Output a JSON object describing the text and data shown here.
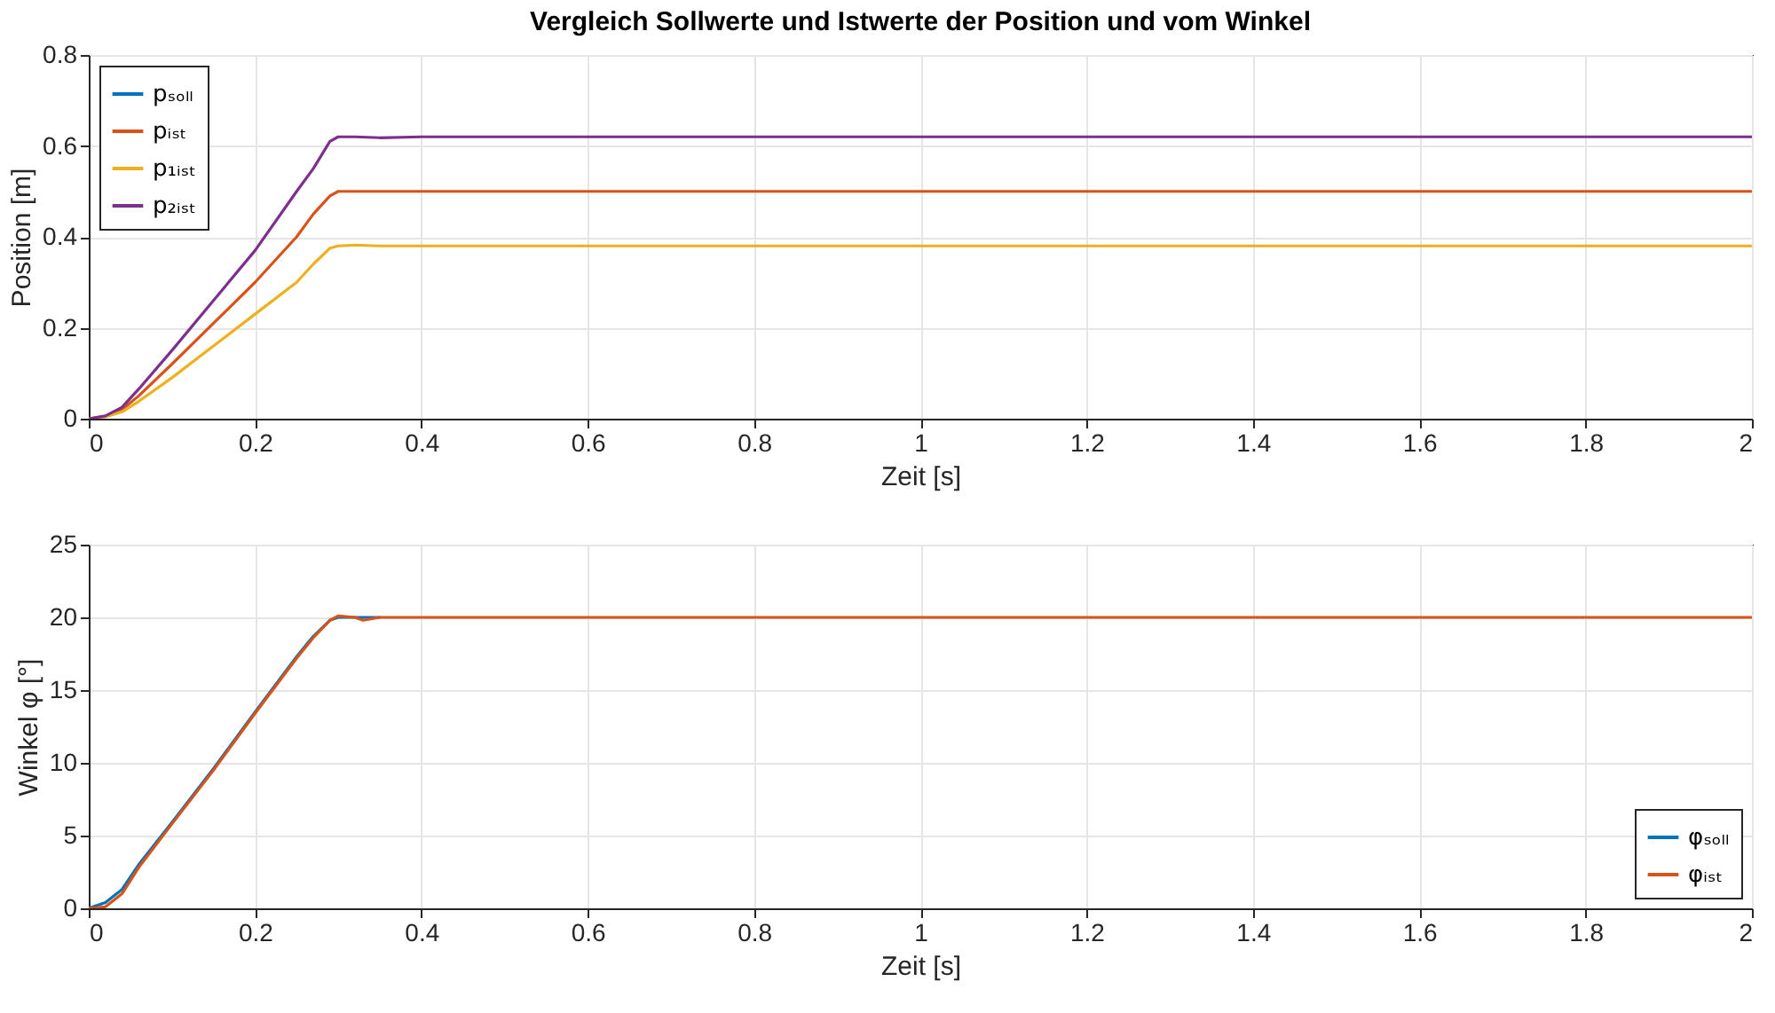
{
  "chart_data": [
    {
      "type": "line",
      "title": "Vergleich Sollwerte und Istwerte der Position und vom Winkel",
      "xlabel": "Zeit [s]",
      "ylabel": "Position [m]",
      "x": [
        0,
        0.02,
        0.04,
        0.06,
        0.1,
        0.15,
        0.2,
        0.25,
        0.27,
        0.29,
        0.3,
        0.32,
        0.35,
        0.4,
        1,
        2
      ],
      "xlim": [
        0,
        2
      ],
      "xticks": [
        0,
        0.2,
        0.4,
        0.6,
        0.8,
        1,
        1.2,
        1.4,
        1.6,
        1.8,
        2
      ],
      "ylim": [
        0,
        0.8
      ],
      "yticks": [
        0,
        0.2,
        0.4,
        0.6,
        0.8
      ],
      "grid": true,
      "legend": "top left",
      "line_style": "solid",
      "series": [
        {
          "name": "pₛₒₗₗ",
          "color": "#0072bd",
          "values": [
            null,
            null,
            null,
            null,
            null,
            null,
            null,
            null,
            null,
            null,
            null,
            null,
            null,
            null,
            null,
            null
          ]
        },
        {
          "name": "pᵢₛₜ",
          "color": "#d95319",
          "values": [
            0,
            0.005,
            0.02,
            0.05,
            0.12,
            0.21,
            0.3,
            0.4,
            0.45,
            0.49,
            0.5,
            0.5,
            0.5,
            0.5,
            0.5,
            0.5
          ]
        },
        {
          "name": "p₁ᵢₛₜ",
          "color": "#edb120",
          "values": [
            0,
            0.004,
            0.015,
            0.038,
            0.09,
            0.16,
            0.23,
            0.3,
            0.34,
            0.375,
            0.38,
            0.382,
            0.38,
            0.38,
            0.38,
            0.38
          ]
        },
        {
          "name": "p₂ᵢₛₜ",
          "color": "#7e2f8e",
          "values": [
            0,
            0.006,
            0.025,
            0.065,
            0.15,
            0.26,
            0.37,
            0.5,
            0.55,
            0.61,
            0.62,
            0.62,
            0.618,
            0.62,
            0.62,
            0.62
          ]
        }
      ]
    },
    {
      "type": "line",
      "xlabel": "Zeit [s]",
      "ylabel": "Winkel φ [°]",
      "x": [
        0,
        0.02,
        0.04,
        0.06,
        0.1,
        0.15,
        0.2,
        0.25,
        0.27,
        0.29,
        0.3,
        0.32,
        0.33,
        0.35,
        0.37,
        0.4,
        1,
        2
      ],
      "xlim": [
        0,
        2
      ],
      "xticks": [
        0,
        0.2,
        0.4,
        0.6,
        0.8,
        1,
        1.2,
        1.4,
        1.6,
        1.8,
        2
      ],
      "ylim": [
        0,
        25
      ],
      "yticks": [
        0,
        5,
        10,
        15,
        20,
        25
      ],
      "grid": true,
      "legend": "bottom right",
      "line_style": "solid",
      "series": [
        {
          "name": "φₛₒₗₗ",
          "color": "#0072bd",
          "values": [
            0,
            0.4,
            1.3,
            3,
            5.9,
            9.6,
            13.5,
            17.3,
            18.7,
            19.8,
            20,
            20,
            20,
            20,
            null,
            null,
            null,
            null
          ]
        },
        {
          "name": "φᵢₛₜ",
          "color": "#d95319",
          "values": [
            0,
            0.1,
            1,
            2.8,
            5.8,
            9.5,
            13.4,
            17.2,
            18.6,
            19.8,
            20.1,
            20,
            19.8,
            20,
            20,
            20,
            20,
            20
          ]
        }
      ]
    }
  ]
}
